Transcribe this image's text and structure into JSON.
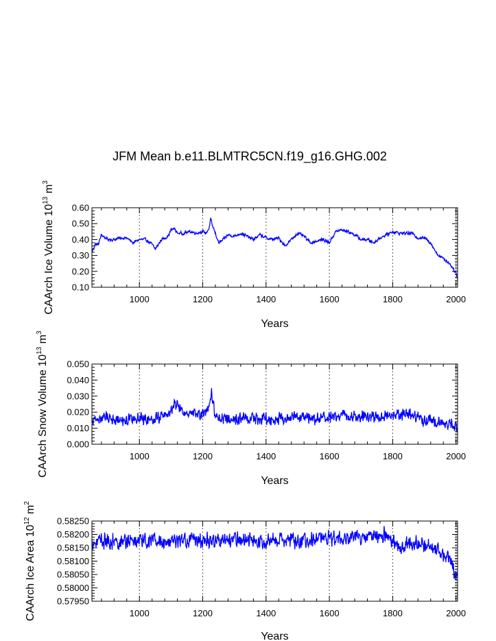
{
  "title": "JFM Mean b.e11.BLMTRC5CN.f19_g16.GHG.002",
  "colors": {
    "series": "#0000ff",
    "axis": "#000000",
    "grid": "#555555"
  },
  "chart_data": [
    {
      "type": "line",
      "xlabel": "Years",
      "ylabel_base": "CAArch Ice Volume 10",
      "ylabel_exp": "13",
      "ylabel_unit": "m",
      "ylabel_unit_exp": "3",
      "xlim": [
        850,
        2005
      ],
      "ylim": [
        0.1,
        0.6
      ],
      "xticks": [
        1000,
        1200,
        1400,
        1600,
        1800,
        2000
      ],
      "yticks": [
        0.1,
        0.2,
        0.3,
        0.4,
        0.5,
        0.6
      ],
      "ytick_labels": [
        "0.10",
        "0.20",
        "0.30",
        "0.40",
        "0.50",
        "0.60"
      ],
      "grid_x": [
        1000,
        1200,
        1400,
        1600,
        1800,
        2000
      ],
      "series": [
        {
          "name": "CAArch Ice Volume",
          "x": [
            850,
            860,
            870,
            880,
            900,
            920,
            940,
            960,
            980,
            1000,
            1020,
            1040,
            1050,
            1060,
            1070,
            1090,
            1100,
            1110,
            1120,
            1140,
            1160,
            1180,
            1200,
            1210,
            1220,
            1225,
            1230,
            1240,
            1250,
            1260,
            1280,
            1300,
            1320,
            1340,
            1360,
            1380,
            1400,
            1420,
            1440,
            1460,
            1480,
            1500,
            1520,
            1540,
            1560,
            1580,
            1600,
            1620,
            1640,
            1660,
            1680,
            1700,
            1720,
            1740,
            1760,
            1780,
            1800,
            1820,
            1840,
            1860,
            1880,
            1900,
            1920,
            1940,
            1960,
            1980,
            1990,
            2000,
            2005
          ],
          "values": [
            0.32,
            0.37,
            0.37,
            0.43,
            0.4,
            0.4,
            0.41,
            0.41,
            0.38,
            0.4,
            0.4,
            0.37,
            0.34,
            0.37,
            0.4,
            0.42,
            0.46,
            0.47,
            0.44,
            0.44,
            0.45,
            0.44,
            0.45,
            0.44,
            0.47,
            0.53,
            0.49,
            0.44,
            0.38,
            0.39,
            0.43,
            0.42,
            0.44,
            0.42,
            0.4,
            0.43,
            0.41,
            0.4,
            0.41,
            0.36,
            0.4,
            0.44,
            0.42,
            0.38,
            0.39,
            0.4,
            0.38,
            0.45,
            0.46,
            0.45,
            0.43,
            0.4,
            0.4,
            0.38,
            0.41,
            0.43,
            0.45,
            0.44,
            0.44,
            0.44,
            0.41,
            0.41,
            0.38,
            0.31,
            0.28,
            0.25,
            0.22,
            0.19,
            0.15
          ],
          "noise": 0.012
        }
      ]
    },
    {
      "type": "line",
      "xlabel": "Years",
      "ylabel_base": "CAArch Snow Volume 10",
      "ylabel_exp": "13",
      "ylabel_unit": "m",
      "ylabel_unit_exp": "3",
      "xlim": [
        850,
        2005
      ],
      "ylim": [
        0.0,
        0.05
      ],
      "xticks": [
        1000,
        1200,
        1400,
        1600,
        1800,
        2000
      ],
      "yticks": [
        0.0,
        0.01,
        0.02,
        0.03,
        0.04,
        0.05
      ],
      "ytick_labels": [
        "0.000",
        "0.010",
        "0.020",
        "0.030",
        "0.040",
        "0.050"
      ],
      "grid_x": [
        1000,
        1200,
        1400,
        1600,
        1800,
        2000
      ],
      "series": [
        {
          "name": "CAArch Snow Volume",
          "x": [
            850,
            900,
            950,
            1000,
            1050,
            1100,
            1110,
            1150,
            1200,
            1220,
            1228,
            1240,
            1300,
            1350,
            1400,
            1450,
            1500,
            1550,
            1600,
            1650,
            1700,
            1750,
            1800,
            1850,
            1900,
            1950,
            2005
          ],
          "values": [
            0.015,
            0.017,
            0.015,
            0.016,
            0.016,
            0.02,
            0.026,
            0.018,
            0.019,
            0.021,
            0.033,
            0.017,
            0.016,
            0.016,
            0.016,
            0.016,
            0.017,
            0.016,
            0.016,
            0.019,
            0.017,
            0.017,
            0.019,
            0.019,
            0.015,
            0.014,
            0.011
          ],
          "noise": 0.0045
        }
      ]
    },
    {
      "type": "line",
      "xlabel": "Years",
      "ylabel_base": "CAArch Ice Area 10",
      "ylabel_exp": "12",
      "ylabel_unit": "m",
      "ylabel_unit_exp": "2",
      "xlim": [
        850,
        2005
      ],
      "ylim": [
        0.5795,
        0.5825
      ],
      "xticks": [
        1000,
        1200,
        1400,
        1600,
        1800,
        2000
      ],
      "yticks": [
        0.5795,
        0.58,
        0.5805,
        0.581,
        0.5815,
        0.582,
        0.5825
      ],
      "ytick_labels": [
        "0.57950",
        "0.58000",
        "0.58050",
        "0.58100",
        "0.58150",
        "0.58200",
        "0.58250"
      ],
      "grid_x": [
        1000,
        1200,
        1400,
        1600,
        1800,
        2000
      ],
      "series": [
        {
          "name": "CAArch Ice Area",
          "x": [
            850,
            900,
            1000,
            1100,
            1200,
            1300,
            1400,
            1500,
            1600,
            1700,
            1780,
            1800,
            1820,
            1850,
            1900,
            1950,
            1980,
            2005
          ],
          "values": [
            0.5817,
            0.58175,
            0.58175,
            0.58175,
            0.5818,
            0.5818,
            0.58178,
            0.58178,
            0.58185,
            0.5819,
            0.582,
            0.5817,
            0.5815,
            0.58175,
            0.5816,
            0.5813,
            0.581,
            0.5803
          ],
          "noise": 0.00035
        }
      ]
    }
  ]
}
